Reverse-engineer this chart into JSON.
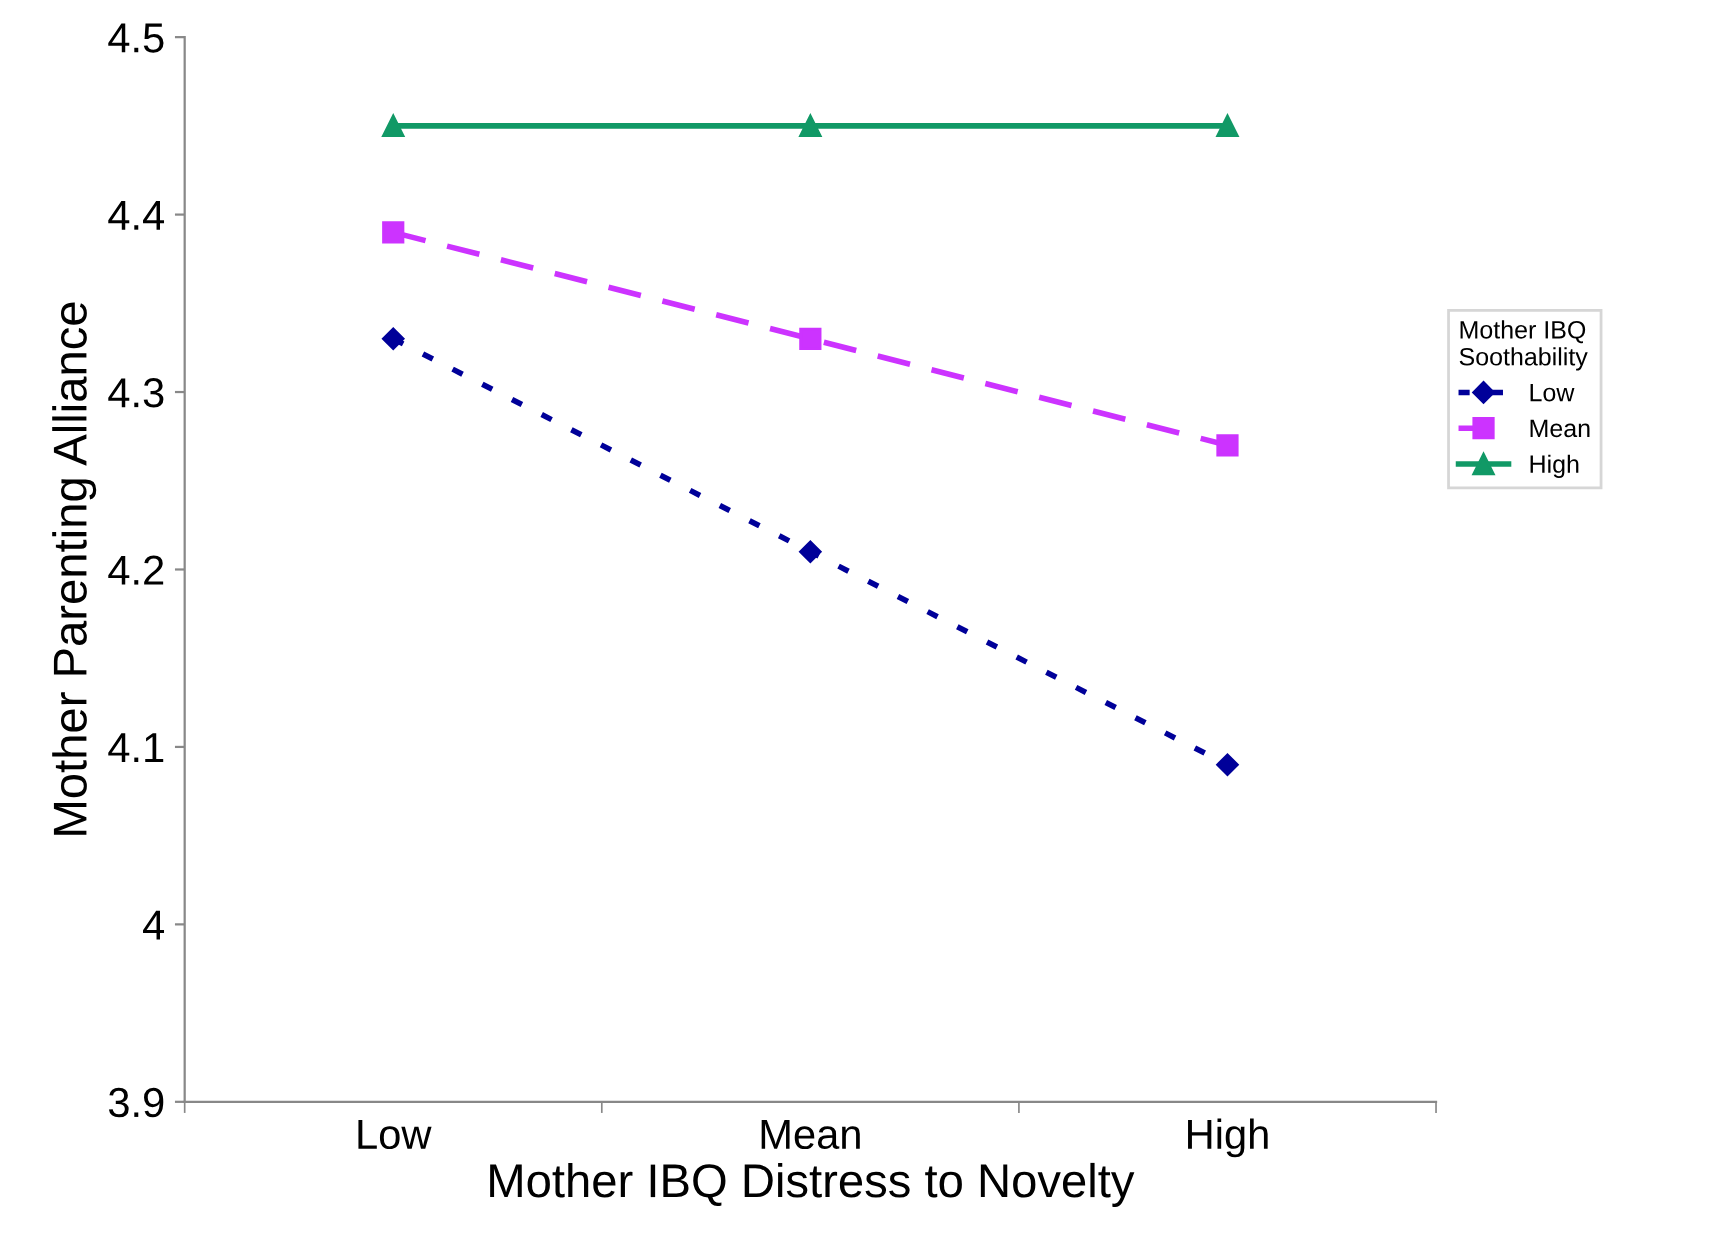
{
  "chart_data": {
    "type": "line",
    "xlabel": "Mother IBQ Distress to Novelty",
    "ylabel": "Mother Parenting Alliance",
    "legend_title": "Mother IBQ\nSoothability",
    "legend": "right",
    "categories": [
      "Low",
      "Mean",
      "High"
    ],
    "ylim": [
      3.9,
      4.5
    ],
    "yticks": [
      3.9,
      4,
      4.1,
      4.2,
      4.3,
      4.4,
      4.5
    ],
    "grid": false,
    "series": [
      {
        "name": "Low",
        "color": "#000099",
        "values": [
          4.33,
          4.21,
          4.09
        ],
        "marker": "diamond",
        "line_style": "dotted"
      },
      {
        "name": "Mean",
        "color": "#cc33ff",
        "values": [
          4.39,
          4.33,
          4.27
        ],
        "marker": "square",
        "line_style": "dashed"
      },
      {
        "name": "High",
        "color": "#119966",
        "values": [
          4.45,
          4.45,
          4.45
        ],
        "marker": "triangle",
        "line_style": "solid"
      }
    ]
  }
}
